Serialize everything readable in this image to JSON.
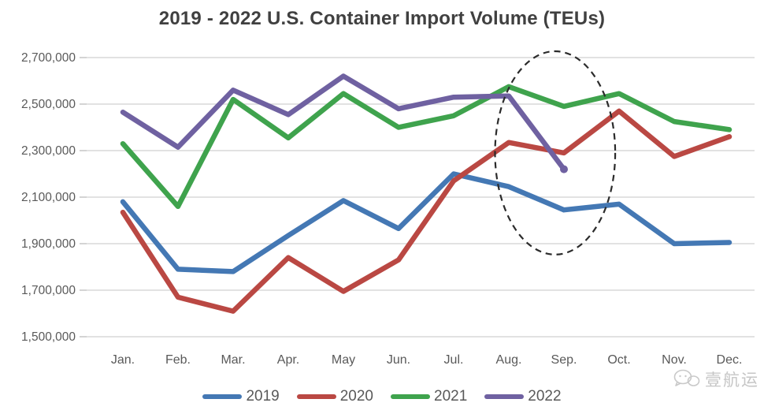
{
  "chart_data": {
    "type": "line",
    "title": "2019 - 2022 U.S. Container Import Volume (TEUs)",
    "categories": [
      "Jan.",
      "Feb.",
      "Mar.",
      "Apr.",
      "May",
      "Jun.",
      "Jul.",
      "Aug.",
      "Sep.",
      "Oct.",
      "Nov.",
      "Dec."
    ],
    "series": [
      {
        "name": "2019",
        "color": "#4478B4",
        "values": [
          2080000,
          1790000,
          1780000,
          1935000,
          2085000,
          1965000,
          2200000,
          2145000,
          2045000,
          2070000,
          1900000,
          1905000
        ]
      },
      {
        "name": "2020",
        "color": "#BA4843",
        "values": [
          2035000,
          1670000,
          1610000,
          1840000,
          1695000,
          1830000,
          2170000,
          2335000,
          2290000,
          2470000,
          2275000,
          2360000
        ]
      },
      {
        "name": "2021",
        "color": "#3FA34D",
        "values": [
          2330000,
          2060000,
          2520000,
          2355000,
          2545000,
          2400000,
          2450000,
          2575000,
          2490000,
          2545000,
          2425000,
          2390000
        ]
      },
      {
        "name": "2022",
        "color": "#6F61A1",
        "end_marker": true,
        "values": [
          2465000,
          2315000,
          2560000,
          2455000,
          2620000,
          2480000,
          2530000,
          2535000,
          2220000,
          null,
          null,
          null
        ]
      }
    ],
    "ylim": [
      1500000,
      2700000
    ],
    "ytick_step": 200000,
    "grid": "horizontal",
    "gridline_color": "#d9d9d9",
    "tick_color": "#c2c2c2",
    "axis_label_color": "#595959",
    "legend_position": "bottom",
    "annotation": {
      "shape": "dashed-ellipse",
      "color": "#2b2b2b",
      "center_month_index": 7.84,
      "center_value": 2290000,
      "radius_months": 1.09,
      "radius_value": 437000
    }
  },
  "watermark": {
    "text": "壹航运",
    "icon": "wechat-bubbles-icon"
  }
}
